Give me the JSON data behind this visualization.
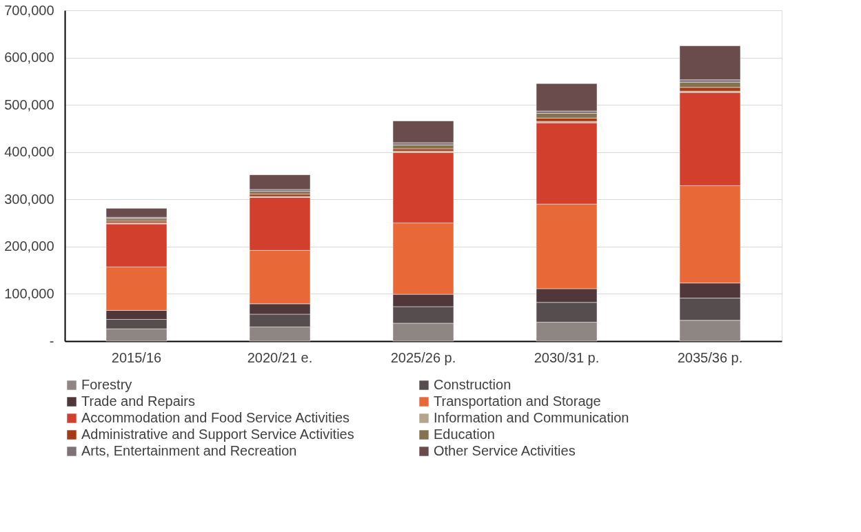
{
  "chart_data": {
    "type": "bar",
    "stacked": true,
    "categories": [
      "2015/16",
      "2020/21 e.",
      "2025/26 p.",
      "2030/31 p.",
      "2035/36 p."
    ],
    "ylim": [
      0,
      700000
    ],
    "yticks": [
      {
        "value": 0,
        "label": "-"
      },
      {
        "value": 100000,
        "label": "100,000"
      },
      {
        "value": 200000,
        "label": "200,000"
      },
      {
        "value": 300000,
        "label": "300,000"
      },
      {
        "value": 400000,
        "label": "400,000"
      },
      {
        "value": 500000,
        "label": "500,000"
      },
      {
        "value": 600000,
        "label": "600,000"
      },
      {
        "value": 700000,
        "label": "700,000"
      }
    ],
    "grid": "y",
    "legend": "bottom",
    "series": [
      {
        "name": "Forestry",
        "color": "#8f8583",
        "values": [
          26000,
          30000,
          38000,
          40000,
          44000
        ]
      },
      {
        "name": "Construction",
        "color": "#564d4e",
        "values": [
          20000,
          27000,
          35000,
          42000,
          47000
        ]
      },
      {
        "name": "Trade and Repairs",
        "color": "#50373a",
        "values": [
          19000,
          22000,
          26000,
          29000,
          32000
        ]
      },
      {
        "name": "Transportation and Storage",
        "color": "#e96838",
        "values": [
          92000,
          113000,
          151000,
          179000,
          206000
        ]
      },
      {
        "name": "Accommodation and Food Service Activities",
        "color": "#d33f2d",
        "values": [
          91000,
          112000,
          149000,
          172000,
          197000
        ]
      },
      {
        "name": "Information and Communication",
        "color": "#b5a58b",
        "values": [
          2000,
          2000,
          3000,
          3000,
          3000
        ]
      },
      {
        "name": "Administrative and Support Service Activities",
        "color": "#a63a17",
        "values": [
          4000,
          5000,
          5000,
          7000,
          8000
        ]
      },
      {
        "name": "Education",
        "color": "#85734f",
        "values": [
          5000,
          6000,
          8000,
          10000,
          11000
        ]
      },
      {
        "name": "Arts, Entertainment and Recreation",
        "color": "#7d7275",
        "values": [
          3000,
          4000,
          5000,
          5000,
          5000
        ]
      },
      {
        "name": "Other Service Activities",
        "color": "#6b4c4d",
        "values": [
          19000,
          31000,
          46000,
          58000,
          72000
        ]
      }
    ]
  }
}
